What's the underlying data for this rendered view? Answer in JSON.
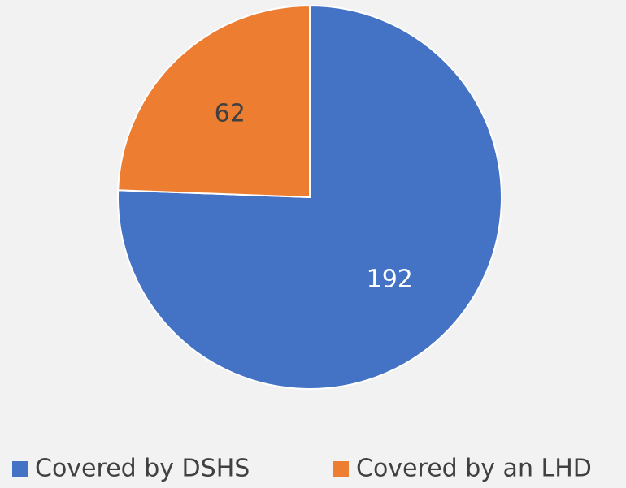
{
  "chart_data": {
    "type": "pie",
    "categories": [
      "Covered by DSHS",
      "Covered by an LHD"
    ],
    "values": [
      192,
      62
    ],
    "colors": [
      "#4472c4",
      "#ed7d31"
    ],
    "label_colors": [
      "#ffffff",
      "#404040"
    ],
    "legend": "bottom"
  }
}
